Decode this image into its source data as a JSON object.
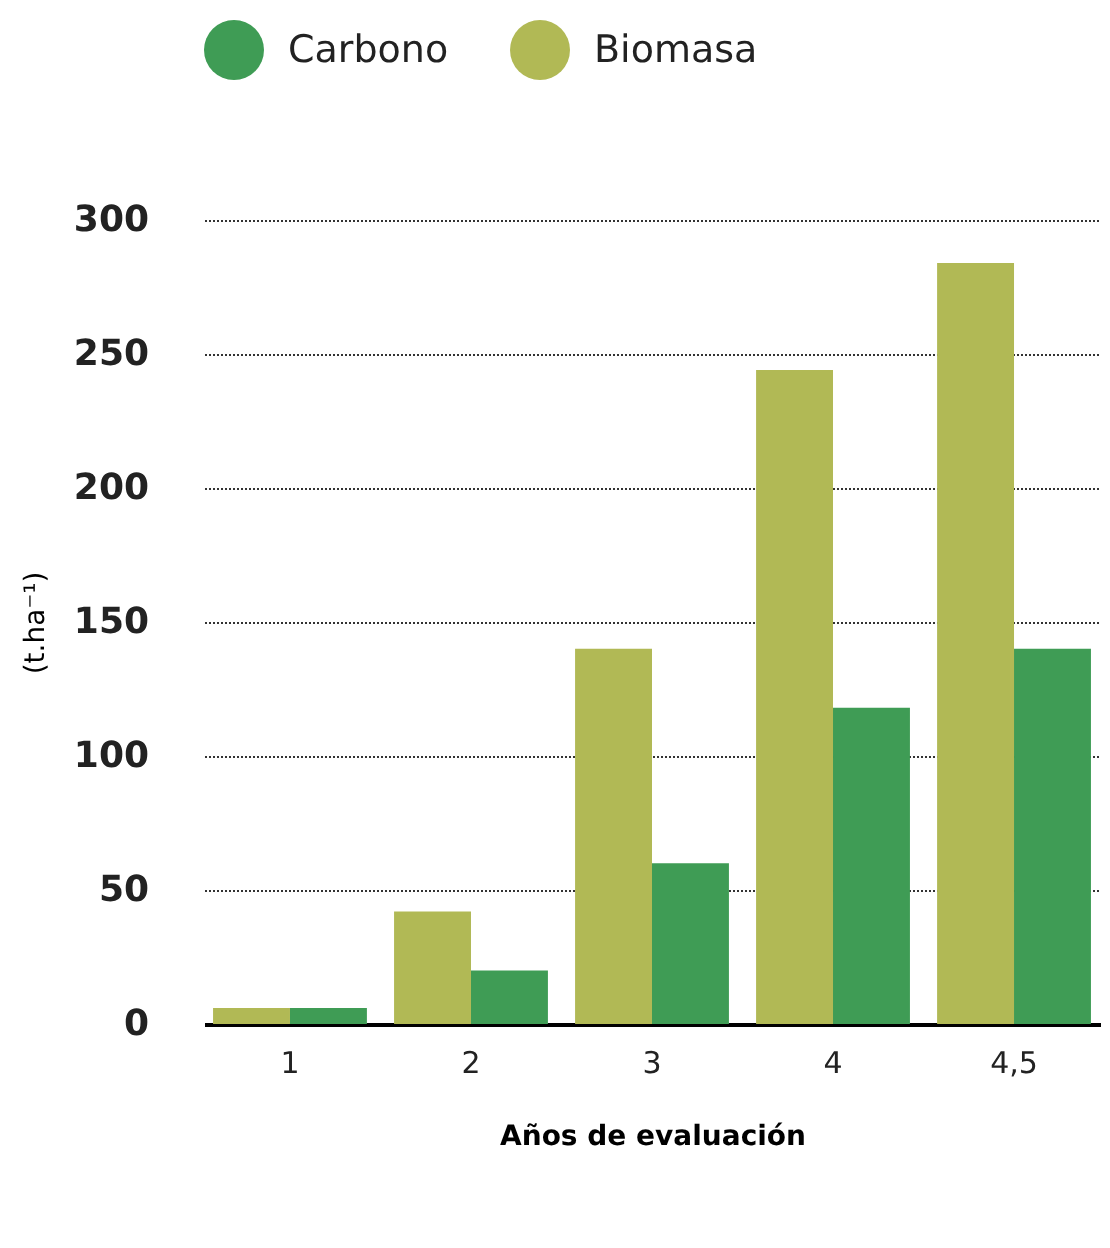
{
  "chart_data": {
    "type": "bar",
    "xlabel": "Años de evaluación",
    "ylabel": "(t.ha⁻¹)",
    "categories": [
      "1",
      "2",
      "3",
      "4",
      "4,5"
    ],
    "series": [
      {
        "name": "Carbono",
        "color": "#3f9c55",
        "values": [
          6,
          20,
          60,
          118,
          140
        ]
      },
      {
        "name": "Biomasa",
        "color": "#b1b955",
        "values": [
          6,
          42,
          140,
          244,
          284
        ]
      }
    ],
    "ylim": [
      0,
      300
    ],
    "yticks": [
      0,
      50,
      100,
      150,
      200,
      250,
      300
    ],
    "grid": "y",
    "legend": "top"
  }
}
